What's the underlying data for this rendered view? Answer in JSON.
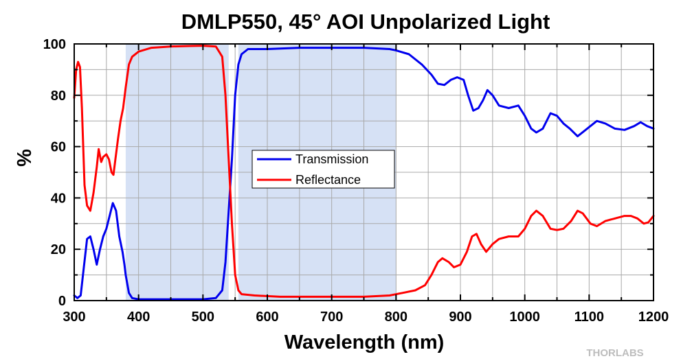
{
  "chart_data": {
    "type": "line",
    "title": "DMLP550, 45° AOI Unpolarized Light",
    "xlabel": "Wavelength (nm)",
    "ylabel": "%",
    "xlim": [
      300,
      1200
    ],
    "ylim": [
      0,
      100
    ],
    "x_ticks": [
      "300",
      "400",
      "500",
      "600",
      "700",
      "800",
      "900",
      "1000",
      "1100",
      "1200"
    ],
    "y_ticks": [
      "0",
      "20",
      "40",
      "60",
      "80",
      "100"
    ],
    "grid": true,
    "legend_position": "center-left",
    "shaded_bands": [
      {
        "from": 380,
        "to": 540
      },
      {
        "from": 555,
        "to": 800
      }
    ],
    "series": [
      {
        "name": "Transmission",
        "color": "#0000ee",
        "points": [
          [
            300,
            2
          ],
          [
            305,
            1
          ],
          [
            310,
            2
          ],
          [
            315,
            13
          ],
          [
            320,
            24
          ],
          [
            325,
            25
          ],
          [
            330,
            20
          ],
          [
            335,
            14
          ],
          [
            340,
            20
          ],
          [
            345,
            25
          ],
          [
            350,
            28
          ],
          [
            355,
            33
          ],
          [
            360,
            38
          ],
          [
            365,
            35
          ],
          [
            370,
            25
          ],
          [
            375,
            19
          ],
          [
            378,
            14
          ],
          [
            380,
            10
          ],
          [
            385,
            3
          ],
          [
            390,
            1
          ],
          [
            400,
            0.5
          ],
          [
            450,
            0.5
          ],
          [
            500,
            0.5
          ],
          [
            520,
            1
          ],
          [
            530,
            4
          ],
          [
            535,
            15
          ],
          [
            540,
            35
          ],
          [
            545,
            55
          ],
          [
            550,
            80
          ],
          [
            555,
            92
          ],
          [
            560,
            96
          ],
          [
            570,
            98
          ],
          [
            600,
            98
          ],
          [
            650,
            98.5
          ],
          [
            700,
            98.5
          ],
          [
            750,
            98.5
          ],
          [
            790,
            98
          ],
          [
            800,
            97.5
          ],
          [
            820,
            96
          ],
          [
            840,
            92
          ],
          [
            855,
            88
          ],
          [
            865,
            84.5
          ],
          [
            875,
            84
          ],
          [
            885,
            86
          ],
          [
            895,
            87
          ],
          [
            905,
            86
          ],
          [
            912,
            80
          ],
          [
            920,
            74
          ],
          [
            928,
            75
          ],
          [
            935,
            78
          ],
          [
            942,
            82
          ],
          [
            950,
            80
          ],
          [
            960,
            76
          ],
          [
            975,
            75
          ],
          [
            990,
            76
          ],
          [
            1000,
            72
          ],
          [
            1010,
            67
          ],
          [
            1018,
            65.5
          ],
          [
            1028,
            67
          ],
          [
            1040,
            73
          ],
          [
            1050,
            72
          ],
          [
            1060,
            69
          ],
          [
            1070,
            67
          ],
          [
            1082,
            64
          ],
          [
            1092,
            66
          ],
          [
            1102,
            68
          ],
          [
            1112,
            70
          ],
          [
            1125,
            69
          ],
          [
            1140,
            67
          ],
          [
            1155,
            66.5
          ],
          [
            1170,
            68
          ],
          [
            1180,
            69.5
          ],
          [
            1190,
            68
          ],
          [
            1200,
            67
          ]
        ]
      },
      {
        "name": "Reflectance",
        "color": "#ff0000",
        "points": [
          [
            300,
            79
          ],
          [
            303,
            90
          ],
          [
            306,
            93
          ],
          [
            309,
            91
          ],
          [
            312,
            75
          ],
          [
            316,
            45
          ],
          [
            320,
            37
          ],
          [
            325,
            35
          ],
          [
            330,
            42
          ],
          [
            335,
            52
          ],
          [
            338,
            59
          ],
          [
            342,
            54
          ],
          [
            345,
            56
          ],
          [
            350,
            57
          ],
          [
            354,
            55
          ],
          [
            358,
            50
          ],
          [
            361,
            49
          ],
          [
            364,
            55
          ],
          [
            368,
            63
          ],
          [
            372,
            70
          ],
          [
            376,
            75
          ],
          [
            380,
            83
          ],
          [
            385,
            92
          ],
          [
            390,
            95
          ],
          [
            400,
            97
          ],
          [
            420,
            98.5
          ],
          [
            450,
            99
          ],
          [
            480,
            99.2
          ],
          [
            500,
            99.3
          ],
          [
            520,
            99
          ],
          [
            525,
            97
          ],
          [
            530,
            95
          ],
          [
            535,
            80
          ],
          [
            540,
            55
          ],
          [
            545,
            30
          ],
          [
            550,
            10
          ],
          [
            555,
            4
          ],
          [
            560,
            2.5
          ],
          [
            580,
            2
          ],
          [
            620,
            1.5
          ],
          [
            700,
            1.5
          ],
          [
            750,
            1.5
          ],
          [
            790,
            2
          ],
          [
            810,
            3
          ],
          [
            830,
            4
          ],
          [
            845,
            6
          ],
          [
            855,
            10
          ],
          [
            865,
            15
          ],
          [
            872,
            16.5
          ],
          [
            882,
            15
          ],
          [
            890,
            13
          ],
          [
            900,
            14
          ],
          [
            910,
            19
          ],
          [
            918,
            25
          ],
          [
            925,
            26
          ],
          [
            932,
            22
          ],
          [
            940,
            19
          ],
          [
            950,
            22
          ],
          [
            960,
            24
          ],
          [
            975,
            25
          ],
          [
            990,
            25
          ],
          [
            1000,
            28
          ],
          [
            1010,
            33
          ],
          [
            1018,
            35
          ],
          [
            1028,
            33
          ],
          [
            1040,
            28
          ],
          [
            1050,
            27.5
          ],
          [
            1060,
            28
          ],
          [
            1072,
            31
          ],
          [
            1082,
            35
          ],
          [
            1090,
            34
          ],
          [
            1102,
            30
          ],
          [
            1112,
            29
          ],
          [
            1125,
            31
          ],
          [
            1140,
            32
          ],
          [
            1155,
            33
          ],
          [
            1165,
            33
          ],
          [
            1175,
            32
          ],
          [
            1185,
            30
          ],
          [
            1192,
            30.5
          ],
          [
            1200,
            33
          ]
        ]
      }
    ]
  },
  "watermark": "THORLABS"
}
